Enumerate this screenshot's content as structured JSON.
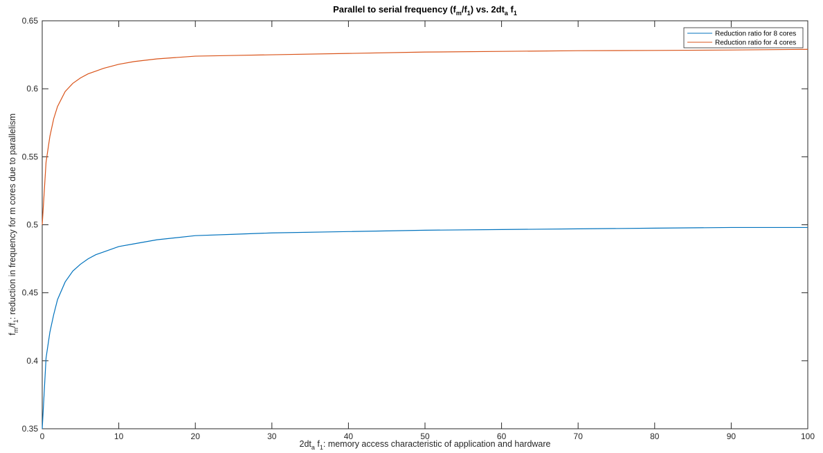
{
  "chart_data": {
    "type": "line",
    "title": "Parallel to serial frequency (f_m/f_1) vs. 2dt_a f_1",
    "title_parts": {
      "t1": "Parallel to serial frequency (f",
      "s1": "m",
      "t2": "/f",
      "s2": "1",
      "t3": ") vs. 2dt",
      "s3": "a",
      "t4": " f",
      "s4": "1"
    },
    "xlabel": "2dt_a f_1: memory access characteristic of application and hardware",
    "xlabel_parts": {
      "t1": "2dt",
      "s1": "a",
      "t2": " f",
      "s2": "1",
      "t3": ": memory access characteristic of application and hardware"
    },
    "ylabel": "f_m/f_1: reduction in frequency for m cores due to parallelism",
    "ylabel_parts": {
      "t1": "f",
      "s1": "m",
      "t2": "/f",
      "s2": "1",
      "t3": ": reduction in frequency for m cores due to parallelism"
    },
    "xlim": [
      0,
      100
    ],
    "ylim": [
      0.35,
      0.65
    ],
    "xticks": [
      0,
      10,
      20,
      30,
      40,
      50,
      60,
      70,
      80,
      90,
      100
    ],
    "xtick_labels": [
      "0",
      "10",
      "20",
      "30",
      "40",
      "50",
      "60",
      "70",
      "80",
      "90",
      "100"
    ],
    "yticks": [
      0.35,
      0.4,
      0.45,
      0.5,
      0.55,
      0.6,
      0.65
    ],
    "ytick_labels": [
      "0.35",
      "0.4",
      "0.45",
      "0.5",
      "0.55",
      "0.6",
      "0.65"
    ],
    "grid": false,
    "legend_position": "top-right",
    "series": [
      {
        "name": "Reduction ratio for 8 cores",
        "color": "#0072BD",
        "x": [
          0,
          0.5,
          1,
          1.5,
          2,
          3,
          4,
          5,
          6,
          7,
          8,
          10,
          12,
          15,
          20,
          25,
          30,
          40,
          50,
          60,
          70,
          80,
          90,
          100
        ],
        "y": [
          0.35,
          0.402,
          0.421,
          0.434,
          0.445,
          0.458,
          0.466,
          0.471,
          0.475,
          0.478,
          0.48,
          0.484,
          0.486,
          0.489,
          0.492,
          0.493,
          0.494,
          0.495,
          0.496,
          0.4965,
          0.497,
          0.4975,
          0.498,
          0.498
        ]
      },
      {
        "name": "Reduction ratio for 4 cores",
        "color": "#D95319",
        "x": [
          0,
          0.5,
          1,
          1.5,
          2,
          3,
          4,
          5,
          6,
          7,
          8,
          10,
          12,
          15,
          20,
          25,
          30,
          40,
          50,
          60,
          70,
          80,
          90,
          100
        ],
        "y": [
          0.5,
          0.546,
          0.565,
          0.578,
          0.587,
          0.598,
          0.604,
          0.608,
          0.611,
          0.613,
          0.615,
          0.618,
          0.62,
          0.622,
          0.624,
          0.6245,
          0.625,
          0.626,
          0.627,
          0.6275,
          0.628,
          0.6282,
          0.6285,
          0.629
        ]
      }
    ]
  }
}
